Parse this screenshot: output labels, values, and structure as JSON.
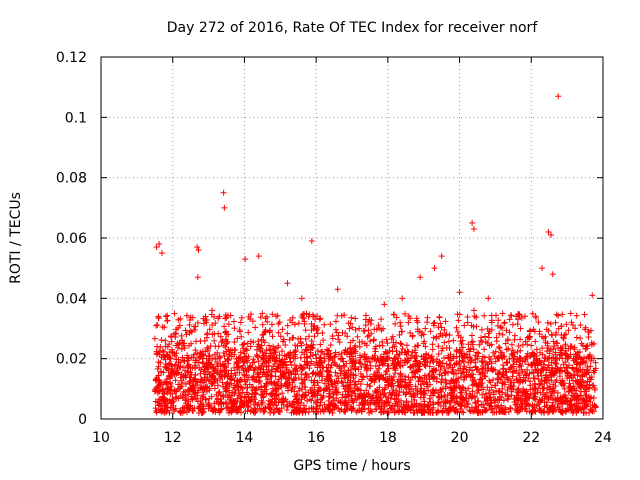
{
  "chart_data": {
    "type": "scatter",
    "title": "Day 272 of 2016, Rate Of TEC Index for receiver norf",
    "xlabel": "GPS time / hours",
    "ylabel": "ROTI / TECUs",
    "xlim": [
      10,
      24
    ],
    "ylim": [
      0,
      0.12
    ],
    "xticks": [
      "10",
      "12",
      "14",
      "16",
      "18",
      "20",
      "22",
      "24"
    ],
    "yticks": [
      "0",
      "0.02",
      "0.04",
      "0.06",
      "0.08",
      "0.1",
      "0.12"
    ],
    "grid": true,
    "marker": "plus",
    "color": "#ff0000",
    "series": [
      {
        "name": "ROTI",
        "x": [
          11.55,
          11.62,
          11.7,
          12.68,
          12.72,
          13.42,
          13.44,
          14.02,
          14.4,
          15.88,
          20.35,
          20.4,
          22.48,
          22.55,
          22.75,
          11.6,
          12.2,
          12.7,
          13.1,
          13.9,
          14.5,
          15.2,
          15.6,
          16.1,
          16.6,
          17.2,
          17.9,
          18.4,
          18.9,
          19.3,
          19.5,
          20.0,
          20.4,
          20.8,
          21.2,
          21.7,
          22.3,
          22.6,
          23.1,
          23.7,
          12.0,
          13.5,
          14.8,
          16.3,
          17.6,
          19.0,
          20.6,
          22.1,
          23.4
        ],
        "y": [
          0.057,
          0.058,
          0.055,
          0.057,
          0.056,
          0.075,
          0.07,
          0.053,
          0.054,
          0.059,
          0.065,
          0.063,
          0.062,
          0.061,
          0.107,
          0.034,
          0.031,
          0.047,
          0.036,
          0.032,
          0.035,
          0.045,
          0.04,
          0.033,
          0.043,
          0.03,
          0.038,
          0.04,
          0.047,
          0.05,
          0.054,
          0.042,
          0.036,
          0.04,
          0.035,
          0.03,
          0.05,
          0.048,
          0.035,
          0.041,
          0.022,
          0.025,
          0.024,
          0.023,
          0.026,
          0.028,
          0.027,
          0.029,
          0.025
        ]
      }
    ],
    "density_bands": [
      {
        "x_start": 11.5,
        "x_end": 23.8,
        "y_min": 0.002,
        "y_max": 0.02,
        "density": "very high"
      },
      {
        "x_start": 11.5,
        "x_end": 23.8,
        "y_min": 0.02,
        "y_max": 0.035,
        "density": "medium"
      }
    ]
  }
}
